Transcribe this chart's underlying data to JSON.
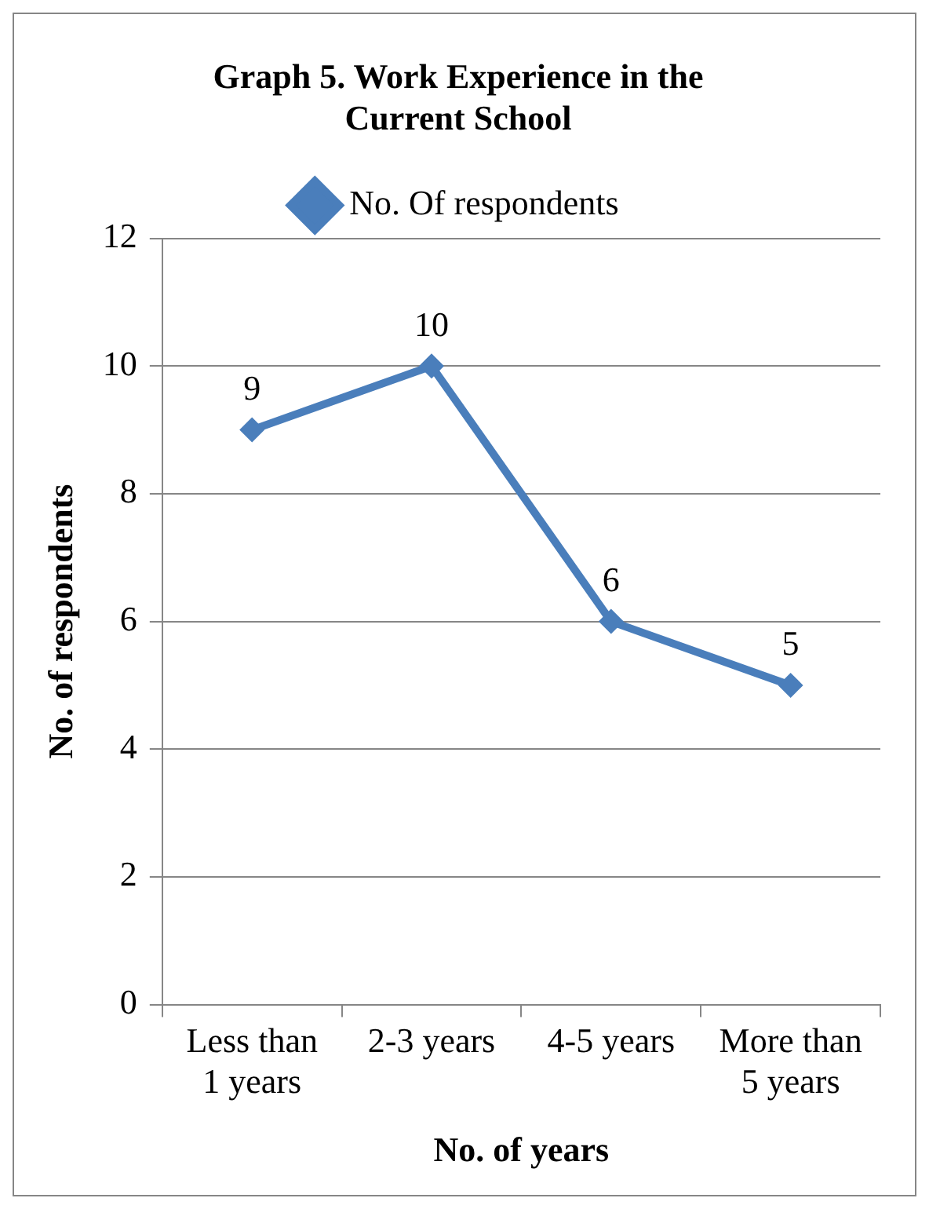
{
  "chart_data": {
    "type": "line",
    "title": "Graph 5. Work Experience in the Current School",
    "xlabel": "No. of years",
    "ylabel": "No. of respondents",
    "categories": [
      "Less than 1 years",
      "2-3 years",
      "4-5 years",
      "More than 5 years"
    ],
    "series": [
      {
        "name": "No. Of respondents",
        "color": "#4a7ebb",
        "values": [
          9,
          10,
          6,
          5
        ]
      }
    ],
    "ylim": [
      0,
      12
    ],
    "yticks": [
      0,
      2,
      4,
      6,
      8,
      10,
      12
    ],
    "grid": "y",
    "legend": "top",
    "marker": "diamond",
    "line_style": "solid",
    "data_labels": true
  }
}
